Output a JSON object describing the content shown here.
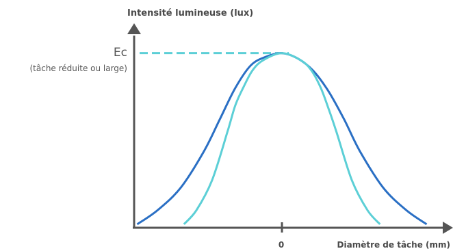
{
  "chart_data": {
    "type": "line",
    "ylabel": "Intensité lumineuse (lux)",
    "xlabel": "Diamètre de tâche (mm)",
    "x_tick_labels": [
      "0"
    ],
    "peak_label": "Ec",
    "peak_sublabel": "(tâche réduite ou large)",
    "colors": {
      "axis": "#555555",
      "wide": "#2a6fc4",
      "narrow": "#5ccfd6",
      "reference": "#5ccfd6"
    },
    "series": [
      {
        "color": "#2a6fc4",
        "x": [
          -9.3,
          -8,
          -6.5,
          -5,
          -4,
          -3,
          -2,
          -1,
          0,
          1,
          2,
          3,
          4,
          5,
          6.5,
          8,
          9.3
        ],
        "y": [
          0.02,
          0.1,
          0.23,
          0.44,
          0.62,
          0.8,
          0.93,
          0.98,
          1.0,
          0.97,
          0.9,
          0.78,
          0.62,
          0.44,
          0.23,
          0.1,
          0.02
        ]
      },
      {
        "color": "#5ccfd6",
        "x": [
          -6.3,
          -5.5,
          -4.5,
          -3.5,
          -3,
          -2.5,
          -1.9,
          -1.2,
          0,
          1.2,
          1.9,
          2.5,
          3,
          3.5,
          4.5,
          5.5,
          6.3
        ],
        "y": [
          0.02,
          0.1,
          0.27,
          0.55,
          0.7,
          0.8,
          0.9,
          0.96,
          1.0,
          0.96,
          0.9,
          0.8,
          0.68,
          0.55,
          0.27,
          0.1,
          0.02
        ]
      }
    ],
    "xlim": [
      -9.5,
      10.2
    ],
    "ylim": [
      0,
      1.03
    ],
    "grid": false,
    "legend": "none"
  }
}
